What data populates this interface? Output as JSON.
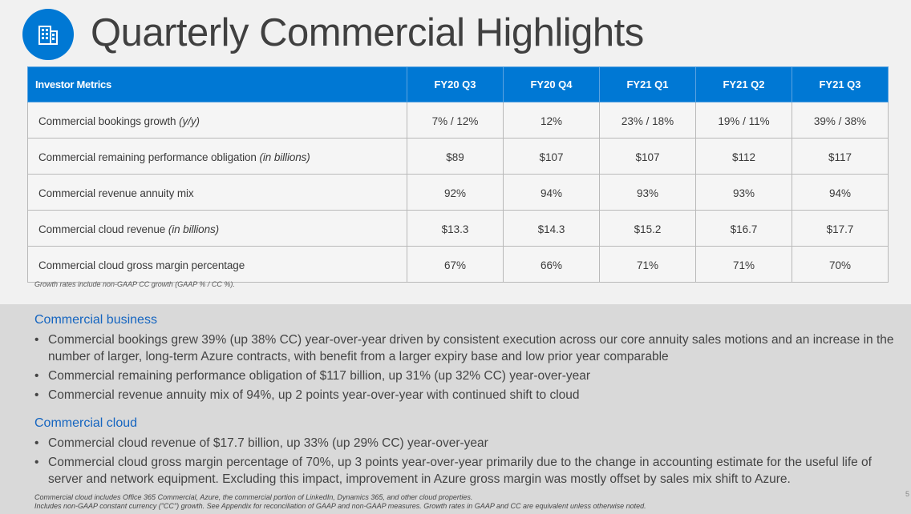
{
  "title": "Quarterly Commercial Highlights",
  "logo_icon": "building-icon",
  "accent_color": "#0078d4",
  "table": {
    "header": [
      "Investor Metrics",
      "FY20 Q3",
      "FY20 Q4",
      "FY21 Q1",
      "FY21 Q2",
      "FY21 Q3"
    ],
    "rows": [
      {
        "label": "Commercial bookings growth",
        "label_note": "(y/y)",
        "values": [
          "7% / 12%",
          "12%",
          "23% / 18%",
          "19% / 11%",
          "39% / 38%"
        ]
      },
      {
        "label": "Commercial remaining performance obligation",
        "label_note": "(in billions)",
        "values": [
          "$89",
          "$107",
          "$107",
          "$112",
          "$117"
        ]
      },
      {
        "label": "Commercial revenue annuity mix",
        "label_note": "",
        "values": [
          "92%",
          "94%",
          "93%",
          "93%",
          "94%"
        ]
      },
      {
        "label": "Commercial cloud revenue",
        "label_note": "(in billions)",
        "values": [
          "$13.3",
          "$14.3",
          "$15.2",
          "$16.7",
          "$17.7"
        ]
      },
      {
        "label": "Commercial cloud gross margin percentage",
        "label_note": "",
        "values": [
          "67%",
          "66%",
          "71%",
          "71%",
          "70%"
        ]
      }
    ]
  },
  "table_footnote": "Growth rates include non-GAAP CC growth (GAAP % / CC %).",
  "sections": [
    {
      "heading": "Commercial business",
      "bullets": [
        "Commercial bookings grew 39% (up 38% CC) year-over-year driven by consistent execution across our core annuity sales motions and an increase in the number of larger, long-term Azure contracts, with benefit from a larger expiry base and low prior year comparable",
        "Commercial remaining performance obligation of $117 billion, up 31% (up 32% CC) year-over-year",
        "Commercial revenue annuity mix of 94%, up 2 points year-over-year with continued shift to cloud"
      ]
    },
    {
      "heading": "Commercial cloud",
      "bullets": [
        "Commercial cloud revenue of $17.7 billion, up 33% (up 29% CC) year-over-year",
        "Commercial cloud gross margin percentage of 70%, up 3 points year-over-year primarily due to the change in accounting estimate for the useful life of server and network equipment. Excluding this impact, improvement in Azure gross margin was mostly offset by sales mix shift to Azure."
      ]
    }
  ],
  "bottom_footnotes": [
    "Commercial cloud includes Office 365 Commercial, Azure, the commercial portion of LinkedIn, Dynamics 365, and other cloud properties.",
    "Includes non-GAAP constant currency (\"CC\") growth. See Appendix for reconciliation of GAAP and non-GAAP measures. Growth rates in GAAP and CC are equivalent unless otherwise noted."
  ],
  "page_number": "5"
}
